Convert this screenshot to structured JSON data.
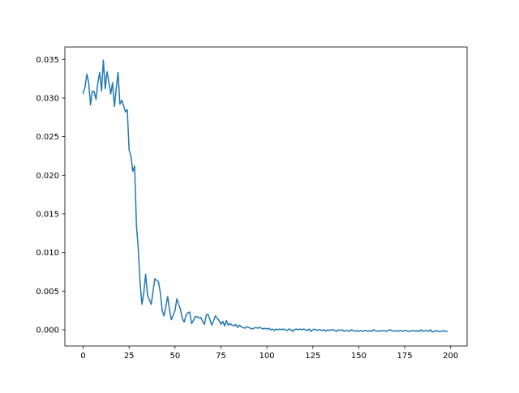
{
  "chart_data": {
    "type": "line",
    "title": "",
    "xlabel": "",
    "ylabel": "",
    "xlim": [
      -9.95,
      208.95
    ],
    "ylim": [
      -0.0021,
      0.0366
    ],
    "grid": false,
    "legend": null,
    "x_ticks": [
      0,
      25,
      50,
      75,
      100,
      125,
      150,
      175,
      200
    ],
    "x_tick_labels": [
      "0",
      "25",
      "50",
      "75",
      "100",
      "125",
      "150",
      "175",
      "200"
    ],
    "y_ticks": [
      0.0,
      0.005,
      0.01,
      0.015,
      0.02,
      0.025,
      0.03,
      0.035
    ],
    "y_tick_labels": [
      "0.000",
      "0.005",
      "0.010",
      "0.015",
      "0.020",
      "0.025",
      "0.030",
      "0.035"
    ],
    "series": [
      {
        "color": "#1f77b4",
        "x_start": 0,
        "x_step": 1,
        "values": [
          0.0306,
          0.0314,
          0.0331,
          0.032,
          0.0291,
          0.0309,
          0.0308,
          0.0298,
          0.032,
          0.0333,
          0.0309,
          0.0349,
          0.0312,
          0.0334,
          0.032,
          0.0305,
          0.032,
          0.0289,
          0.0312,
          0.0333,
          0.0292,
          0.0297,
          0.029,
          0.0282,
          0.0285,
          0.0233,
          0.0225,
          0.0205,
          0.0212,
          0.0135,
          0.0105,
          0.006,
          0.0033,
          0.0048,
          0.0072,
          0.0045,
          0.0039,
          0.0033,
          0.0049,
          0.0066,
          0.0064,
          0.0062,
          0.0048,
          0.0025,
          0.0018,
          0.003,
          0.0043,
          0.0026,
          0.0013,
          0.0019,
          0.0025,
          0.004,
          0.0033,
          0.0026,
          0.0014,
          0.001,
          0.0019,
          0.0022,
          0.0023,
          0.0008,
          0.0012,
          0.0017,
          0.0017,
          0.0015,
          0.0016,
          0.0011,
          0.0007,
          0.0019,
          0.002,
          0.0013,
          0.0006,
          0.0012,
          0.0018,
          0.0015,
          0.0012,
          0.0007,
          0.0011,
          0.0005,
          0.0012,
          0.0006,
          0.0008,
          0.0006,
          0.0005,
          0.0007,
          0.0003,
          0.0006,
          0.0004,
          0.0003,
          0.0002,
          0.0004,
          0.0003,
          0.0002,
          0.0001,
          0.0002,
          0.0003,
          0.0002,
          0.0003,
          0.0002,
          0.0001,
          0.0002,
          0.0001,
          0.0002,
          0.0,
          0.0001,
          -0.0001,
          0.0001,
          0.0,
          0.0001,
          0.0,
          0.0001,
          0.0,
          -0.0001,
          0.0001,
          0.0,
          -0.0002,
          0.0,
          0.0001,
          0.0,
          0.0001,
          0.0,
          0.0001,
          0.0,
          -0.0001,
          0.0001,
          -0.0002,
          0.0,
          0.0001,
          -0.0001,
          0.0,
          0.0,
          -0.0001,
          0.0,
          -0.0002,
          0.0,
          -0.0001,
          0.0,
          0.0,
          -0.0001,
          -0.0002,
          0.0,
          -0.0001,
          0.0,
          -0.0002,
          -0.0001,
          -0.0001,
          -0.0002,
          0.0,
          -0.0001,
          -0.0002,
          -0.0001,
          -0.0002,
          -0.0001,
          -0.0002,
          -0.0001,
          -0.0001,
          -0.0002,
          -0.0001,
          -0.0002,
          0.0,
          -0.0001,
          -0.0002,
          -0.0001,
          -0.0002,
          -0.0001,
          -0.0001,
          -0.0002,
          -0.0001,
          0.0,
          -0.0001,
          -0.0002,
          -0.0001,
          -0.0002,
          -0.0001,
          -0.0001,
          -0.0002,
          -0.0001,
          -0.0001,
          -0.0002,
          -0.0002,
          -0.0001,
          -0.0001,
          -0.0002,
          -0.0001,
          -0.0002,
          0.0,
          -0.0002,
          -0.0001,
          -0.0001,
          -0.0002,
          0.0,
          -0.0003,
          -0.0002,
          -0.0001,
          -0.0002,
          -0.0002,
          -0.0002,
          -0.0001,
          -0.0002,
          -0.0002
        ]
      }
    ]
  }
}
